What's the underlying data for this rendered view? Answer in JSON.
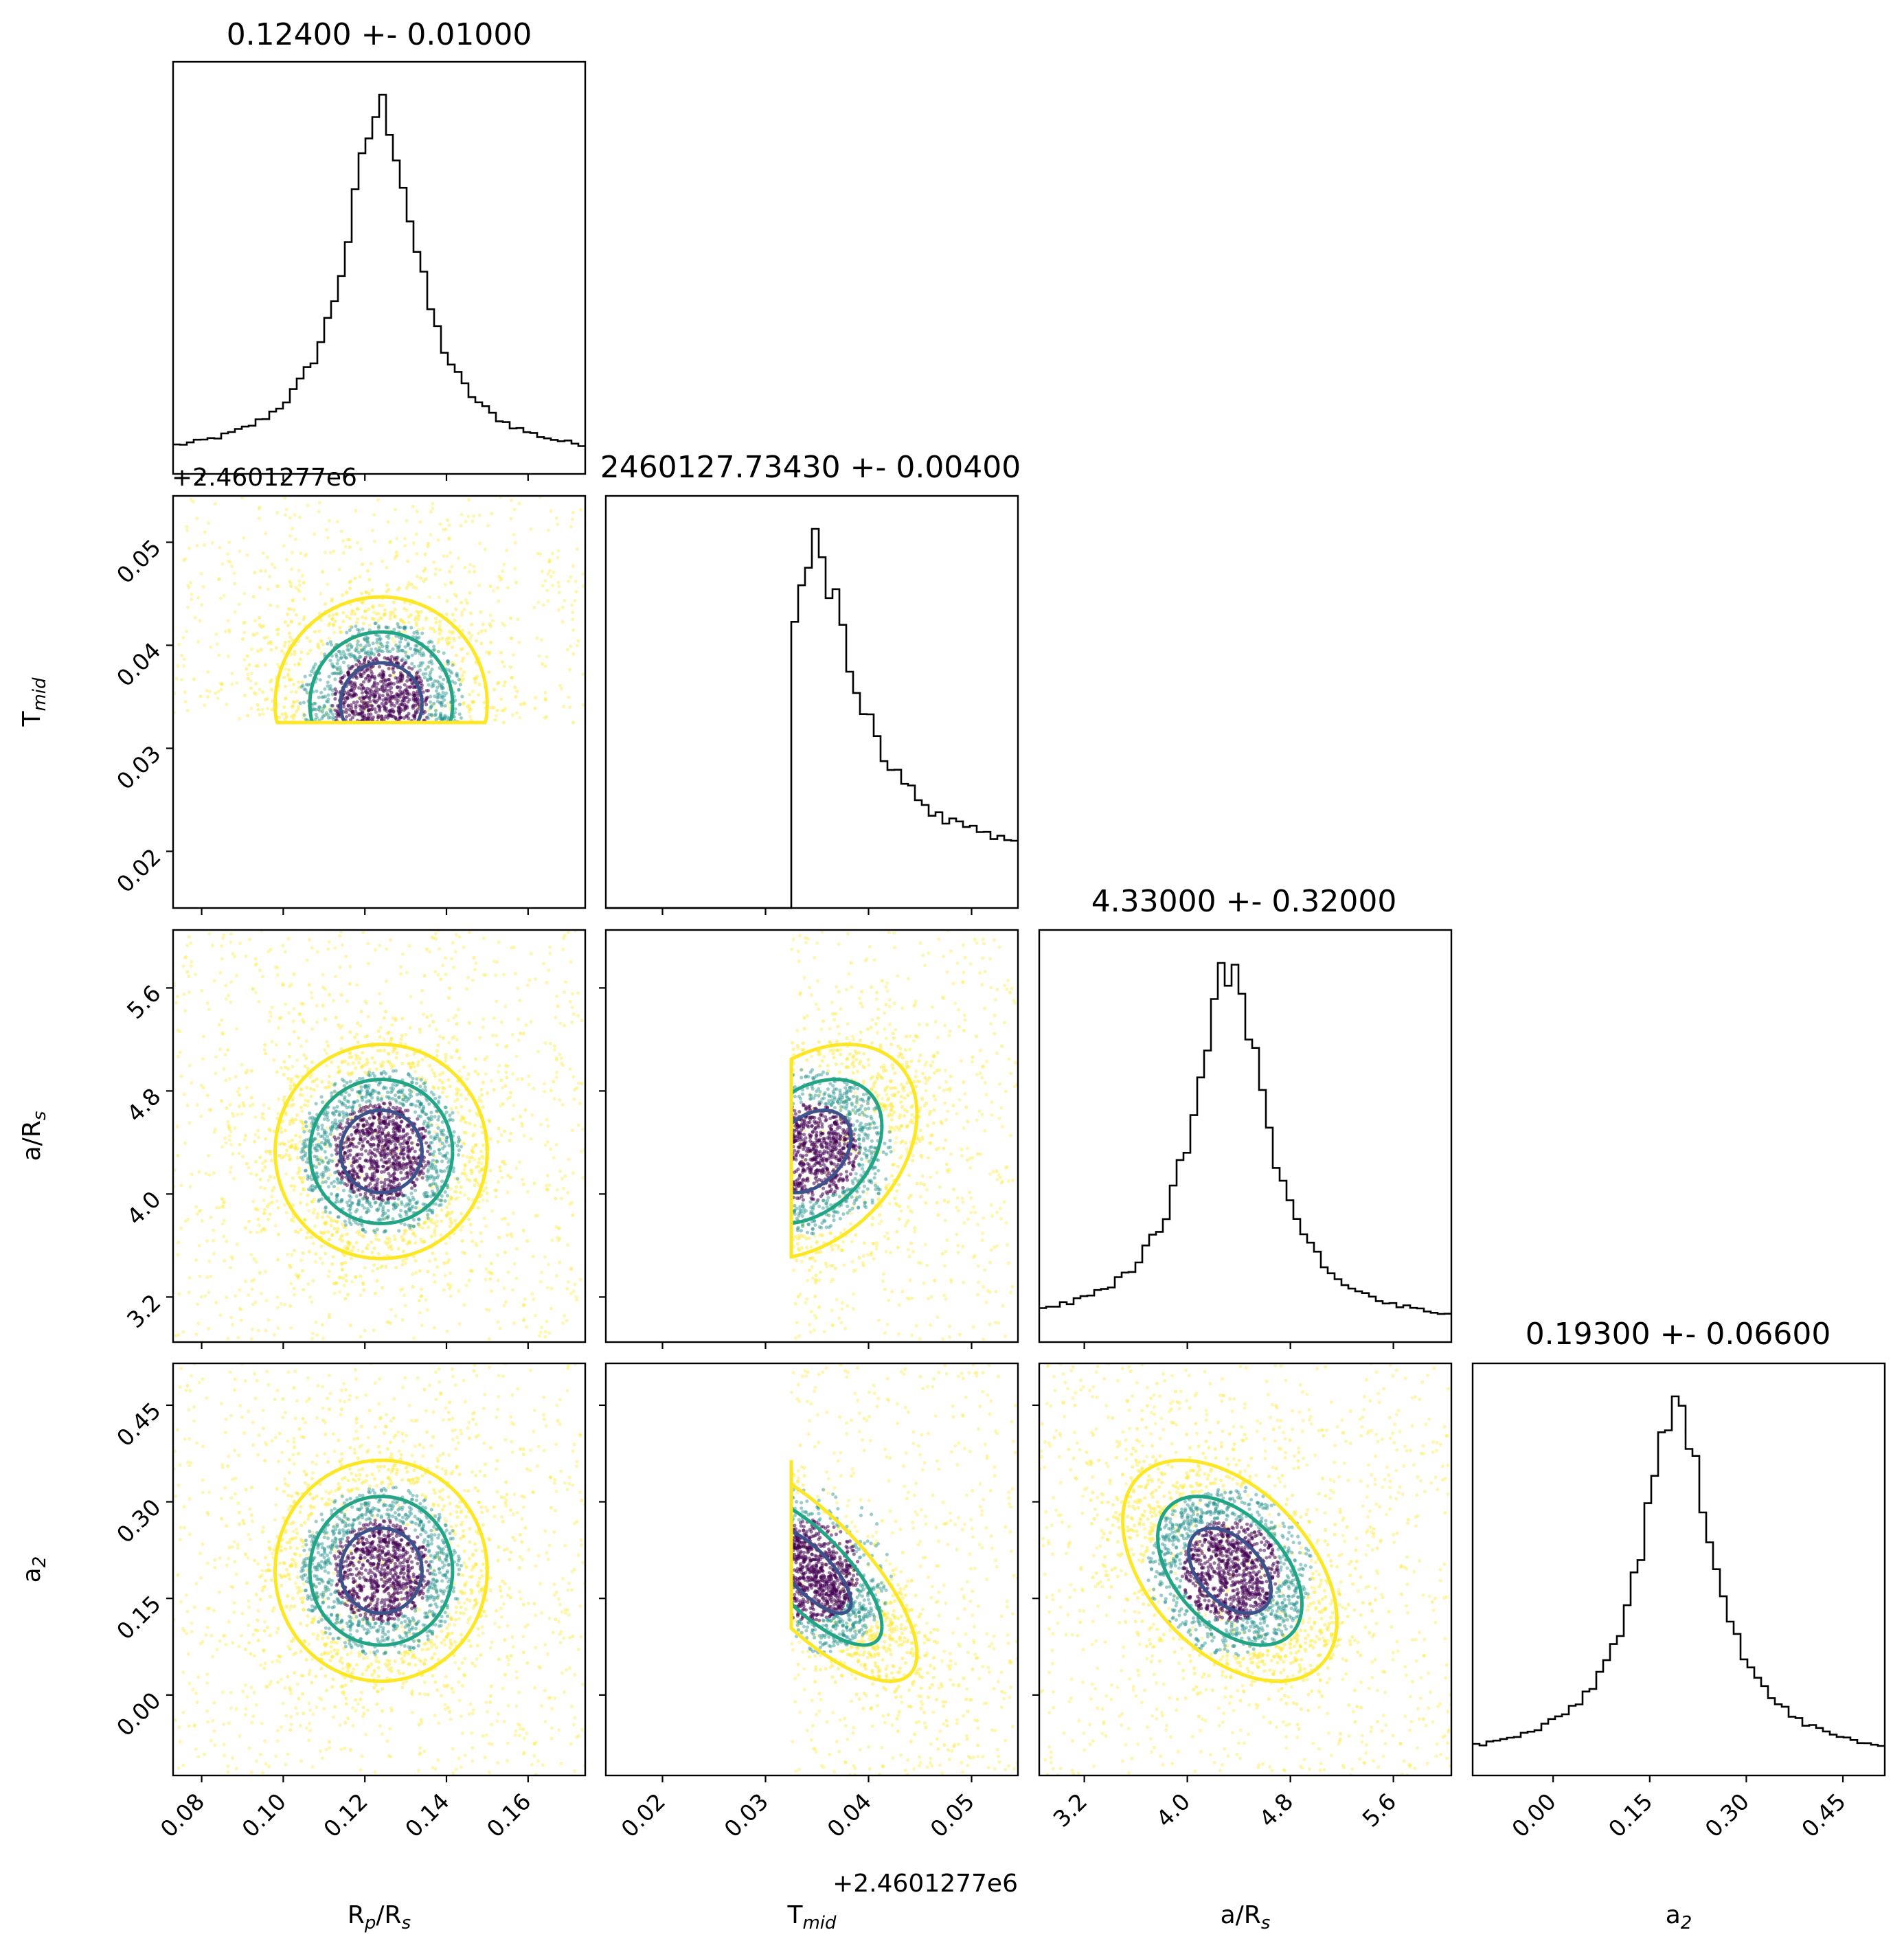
{
  "figure": {
    "panel_titles": [
      "0.12400 +- 0.01000",
      "2460127.73430 +- 0.00400",
      "4.33000 +- 0.32000",
      "0.19300 +- 0.06600"
    ],
    "offset_texts": {
      "row_tmid": "+2.4601277e6",
      "col_tmid": "+2.4601277e6"
    }
  },
  "chart_data": {
    "type": "corner",
    "parameters": [
      {
        "key": "rp",
        "label": "R",
        "label_sub": "p",
        "label_tail": "/R",
        "label_tail_sub": "s",
        "range": [
          0.073,
          0.174
        ],
        "ticks": [
          0.08,
          0.1,
          0.12,
          0.14,
          0.16
        ],
        "tick_labels": [
          "0.08",
          "0.10",
          "0.12",
          "0.14",
          "0.16"
        ],
        "mean": 0.124,
        "std": 0.01
      },
      {
        "key": "tmid",
        "label": "T",
        "label_sub": "mid",
        "label_tail": "",
        "label_tail_sub": "",
        "range": [
          0.0145,
          0.0545
        ],
        "ticks": [
          0.02,
          0.03,
          0.04,
          0.05
        ],
        "tick_labels": [
          "0.02",
          "0.03",
          "0.04",
          "0.05"
        ],
        "mean": 0.0343,
        "std": 0.004,
        "lower_bound": 0.0325
      },
      {
        "key": "ars",
        "label": "a/R",
        "label_sub": "s",
        "label_tail": "",
        "label_tail_sub": "",
        "range": [
          2.85,
          6.05
        ],
        "ticks": [
          3.2,
          4.0,
          4.8,
          5.6
        ],
        "tick_labels": [
          "3.2",
          "4.0",
          "4.8",
          "5.6"
        ],
        "mean": 4.33,
        "std": 0.32
      },
      {
        "key": "a2",
        "label": "a",
        "label_sub": "2",
        "label_tail": "",
        "label_tail_sub": "",
        "range": [
          -0.125,
          0.515
        ],
        "ticks": [
          0.0,
          0.15,
          0.3,
          0.45
        ],
        "tick_labels": [
          "0.00",
          "0.15",
          "0.30",
          "0.45"
        ],
        "mean": 0.193,
        "std": 0.066
      }
    ],
    "contour_levels": [
      "inner",
      "middle",
      "outer"
    ],
    "colors": {
      "points_dense": "#440154",
      "points_mid": "#21918c",
      "points_sparse": "#fde725",
      "contour_inner": "#3b528b",
      "contour_middle": "#21a585",
      "contour_outer": "#fde725",
      "hist": "#000000"
    }
  }
}
